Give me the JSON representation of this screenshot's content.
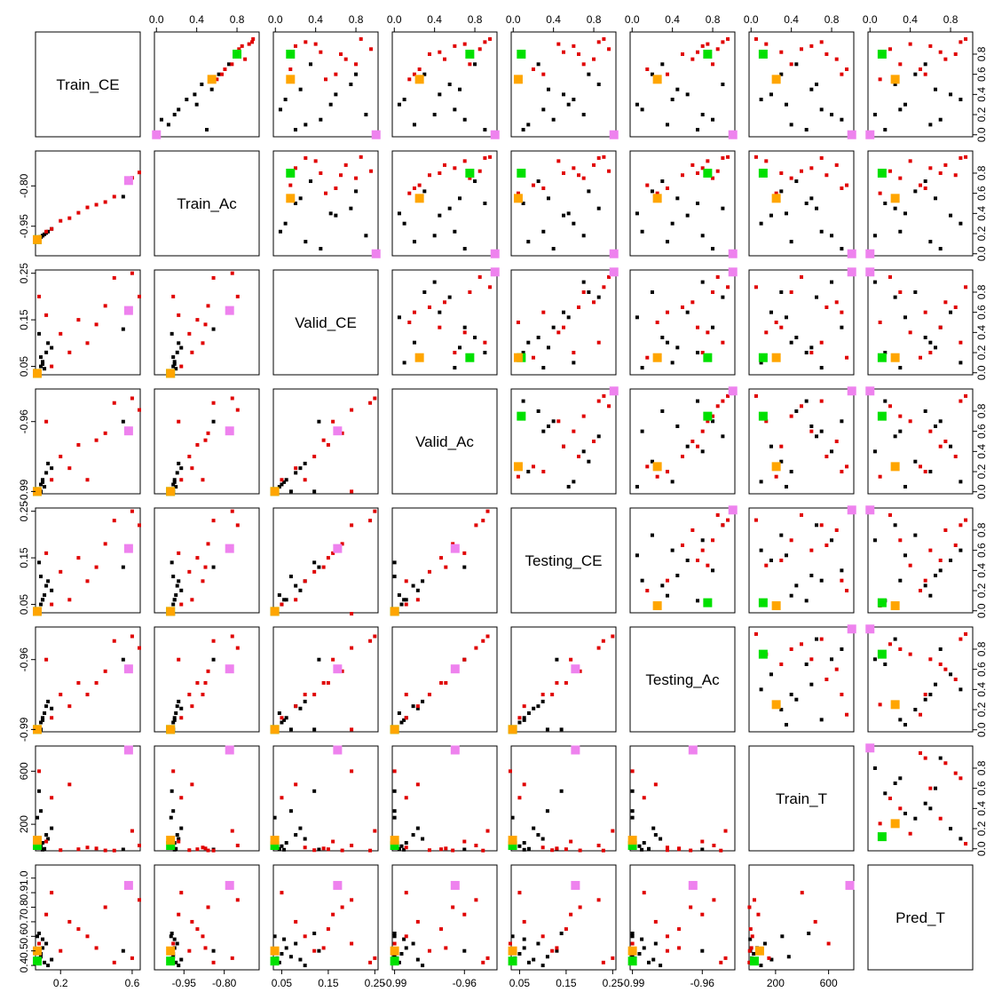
{
  "chart_data": {
    "type": "scatter_matrix",
    "variables": [
      {
        "name": "Train_CE",
        "lim": [
          0.06,
          0.645
        ],
        "ticks": [
          0.2,
          0.6
        ]
      },
      {
        "name": "Train_Ac",
        "lim": [
          -1.06,
          -0.67
        ],
        "ticks": [
          -0.95,
          {
            "value": -0.8,
            "label": "-0.80"
          }
        ]
      },
      {
        "name": "Valid_CE",
        "lim": [
          0.032,
          0.257
        ],
        "ticks": [
          0.05,
          0.15,
          0.25
        ]
      },
      {
        "name": "Valid_Ac",
        "lim": [
          -0.991,
          -0.946
        ],
        "ticks": [
          -0.99,
          -0.96
        ]
      },
      {
        "name": "Testing_CE",
        "lim": [
          0.032,
          0.257
        ],
        "ticks": [
          0.05,
          0.15,
          0.25
        ]
      },
      {
        "name": "Testing_Ac",
        "lim": [
          -0.991,
          -0.946
        ],
        "ticks": [
          -0.99,
          -0.96
        ]
      },
      {
        "name": "Train_T",
        "lim": [
          0,
          790
        ],
        "ticks": [
          200,
          600
        ]
      },
      {
        "name": "Pred_T",
        "lim": [
          0.37,
          1.09
        ],
        "ticks": [
          0.4,
          0.5,
          0.6,
          0.7,
          0.8,
          0.9,
          {
            "value": 1,
            "label": "1.0"
          }
        ]
      }
    ],
    "scaled_lim": [
      -0.02,
      1.02
    ],
    "scaled_ticks_top": [
      {
        "value": 0,
        "label": "0.0"
      },
      0.4,
      0.8
    ],
    "scaled_ticks_right": [
      {
        "value": 0,
        "label": "0.0"
      },
      0.2,
      0.4,
      0.6,
      0.8
    ],
    "series": [
      {
        "color": "#000000",
        "marker": "small",
        "raw": [
          [
            0.08,
            -0.995,
            0.04,
            -0.989,
            0.04,
            -0.989,
            20,
            0.45
          ],
          [
            0.09,
            -0.99,
            0.05,
            -0.987,
            0.05,
            -0.987,
            35,
            0.48
          ],
          [
            0.1,
            -0.985,
            0.06,
            -0.985,
            0.06,
            -0.985,
            60,
            0.52
          ],
          [
            0.11,
            -0.98,
            0.045,
            -0.988,
            0.07,
            -0.983,
            15,
            0.42
          ],
          [
            0.12,
            -0.975,
            0.08,
            -0.982,
            0.09,
            -0.98,
            120,
            0.55
          ],
          [
            0.07,
            -0.998,
            0.035,
            -0.99,
            0.035,
            -0.99,
            250,
            0.6
          ],
          [
            0.09,
            -0.99,
            0.07,
            -0.99,
            0.11,
            -0.99,
            300,
            0.46
          ],
          [
            0.13,
            -0.97,
            0.1,
            -0.978,
            0.1,
            -0.978,
            90,
            0.4
          ],
          [
            0.55,
            -0.84,
            0.13,
            -0.96,
            0.13,
            -0.96,
            10,
            0.5
          ],
          [
            0.08,
            -0.995,
            0.12,
            -0.99,
            0.14,
            -0.99,
            450,
            0.62
          ],
          [
            0.1,
            -0.985,
            0.055,
            -0.986,
            0.06,
            -0.986,
            8,
            0.58
          ],
          [
            0.15,
            -0.96,
            0.09,
            -0.98,
            0.08,
            -0.981,
            170,
            0.44
          ]
        ],
        "scaled": [
          [
            0.1,
            0.12,
            0.3,
            0.2,
            0.15,
            0.35,
            0.4,
            0.6
          ],
          [
            0.25,
            0.22,
            0.05,
            0.6,
            0.3,
            0.1,
            0.7,
            0.3
          ],
          [
            0.4,
            0.38,
            0.6,
            0.45,
            0.5,
            0.55,
            0.2,
            0.8
          ],
          [
            0.05,
            0.5,
            0.2,
            0.9,
            0.1,
            0.65,
            0.55,
            0.15
          ],
          [
            0.6,
            0.62,
            0.8,
            0.3,
            0.75,
            0.2,
            0.3,
            0.45
          ],
          [
            0.15,
            0.05,
            0.45,
            0.7,
            0.4,
            0.8,
            0.9,
            0.7
          ],
          [
            0.35,
            0.3,
            0.1,
            0.1,
            0.6,
            0.4,
            0.1,
            0.9
          ],
          [
            0.5,
            0.45,
            0.75,
            0.55,
            0.85,
            0.9,
            0.65,
            0.25
          ],
          [
            0.7,
            0.72,
            0.35,
            0.8,
            0.25,
            0.3,
            0.45,
            0.55
          ],
          [
            0.2,
            0.18,
            0.9,
            0.4,
            0.7,
            0.7,
            0.8,
            0.05
          ],
          [
            0.3,
            0.4,
            0.55,
            0.05,
            0.55,
            0.05,
            0.35,
            0.35
          ],
          [
            0.45,
            0.55,
            0.25,
            0.65,
            0.35,
            0.45,
            0.6,
            0.65
          ]
        ]
      },
      {
        "color": "#e00000",
        "marker": "small",
        "raw": [
          [
            0.2,
            -0.93,
            0.12,
            -0.975,
            0.12,
            -0.975,
            5,
            0.5
          ],
          [
            0.3,
            -0.9,
            0.15,
            -0.97,
            0.15,
            -0.97,
            12,
            0.65
          ],
          [
            0.45,
            -0.86,
            0.18,
            -0.965,
            0.18,
            -0.965,
            3,
            0.8
          ],
          [
            0.6,
            -0.77,
            0.25,
            -0.95,
            0.25,
            -0.95,
            150,
            0.45
          ],
          [
            0.64,
            -0.75,
            0.2,
            -0.955,
            0.22,
            -0.955,
            40,
            0.85
          ],
          [
            0.25,
            -0.92,
            0.08,
            -0.98,
            0.06,
            -0.98,
            500,
            0.7
          ],
          [
            0.08,
            -0.99,
            0.2,
            -0.99,
            0.03,
            -0.99,
            600,
            0.55
          ],
          [
            0.35,
            -0.88,
            0.1,
            -0.985,
            0.1,
            -0.975,
            25,
            0.6
          ],
          [
            0.12,
            -0.97,
            0.16,
            -0.96,
            0.16,
            -0.96,
            70,
            0.75
          ],
          [
            0.5,
            -0.84,
            0.24,
            -0.952,
            0.23,
            -0.952,
            2,
            0.42
          ],
          [
            0.15,
            -0.96,
            0.05,
            -0.985,
            0.05,
            -0.985,
            400,
            0.9
          ],
          [
            0.4,
            -0.87,
            0.14,
            -0.968,
            0.13,
            -0.97,
            18,
            0.52
          ]
        ],
        "scaled": [
          [
            0.9,
            0.92,
            0.4,
            0.7,
            0.45,
            0.75,
            0.15,
            0.4
          ],
          [
            0.8,
            0.78,
            0.65,
            0.35,
            0.65,
            0.5,
            0.75,
            0.85
          ],
          [
            0.95,
            0.96,
            0.85,
            0.95,
            0.9,
            0.95,
            0.05,
            0.95
          ],
          [
            0.85,
            0.82,
            0.95,
            0.85,
            0.95,
            0.85,
            0.5,
            0.2
          ],
          [
            0.75,
            0.88,
            0.7,
            0.5,
            0.8,
            0.6,
            0.85,
            0.75
          ],
          [
            0.65,
            0.68,
            0.15,
            0.25,
            0.2,
            0.15,
            0.95,
            0.5
          ],
          [
            0.55,
            0.6,
            0.5,
            0.15,
            0.05,
            0.25,
            0.25,
            0.1
          ],
          [
            0.88,
            0.85,
            0.2,
            0.6,
            0.6,
            0.7,
            0.6,
            0.6
          ],
          [
            0.7,
            0.75,
            0.8,
            0.75,
            0.7,
            0.8,
            0.4,
            0.3
          ],
          [
            0.92,
            0.95,
            0.3,
            0.9,
            0.85,
            0.9,
            0.7,
            0.9
          ],
          [
            0.6,
            0.65,
            0.6,
            0.2,
            0.3,
            0.35,
            0.9,
            0.55
          ],
          [
            0.82,
            0.8,
            0.45,
            0.45,
            0.5,
            0.65,
            0.3,
            0.7
          ]
        ]
      },
      {
        "color": "#ee82ee",
        "marker": "large",
        "raw": [
          [
            0.58,
            -0.78,
            0.17,
            -0.964,
            0.17,
            -0.964,
            760,
            0.95
          ]
        ],
        "scaled": [
          [
            0,
            0,
            1,
            1,
            1,
            1,
            1,
            0
          ]
        ]
      },
      {
        "color": "#00e000",
        "marker": "large",
        "raw": [
          [
            0.07,
            -1,
            0.035,
            -0.99,
            0.035,
            -0.99,
            40,
            0.43
          ]
        ],
        "scaled": [
          [
            0.8,
            0.8,
            0.15,
            0.75,
            0.08,
            0.75,
            0.12,
            0.12
          ]
        ]
      },
      {
        "color": "#ffa500",
        "marker": "large",
        "raw": [
          [
            0.07,
            -1,
            0.035,
            -0.99,
            0.035,
            -0.99,
            80,
            0.5
          ]
        ],
        "scaled": [
          [
            0.55,
            0.55,
            0.15,
            0.25,
            0.05,
            0.25,
            0.25,
            0.25
          ]
        ]
      }
    ]
  }
}
